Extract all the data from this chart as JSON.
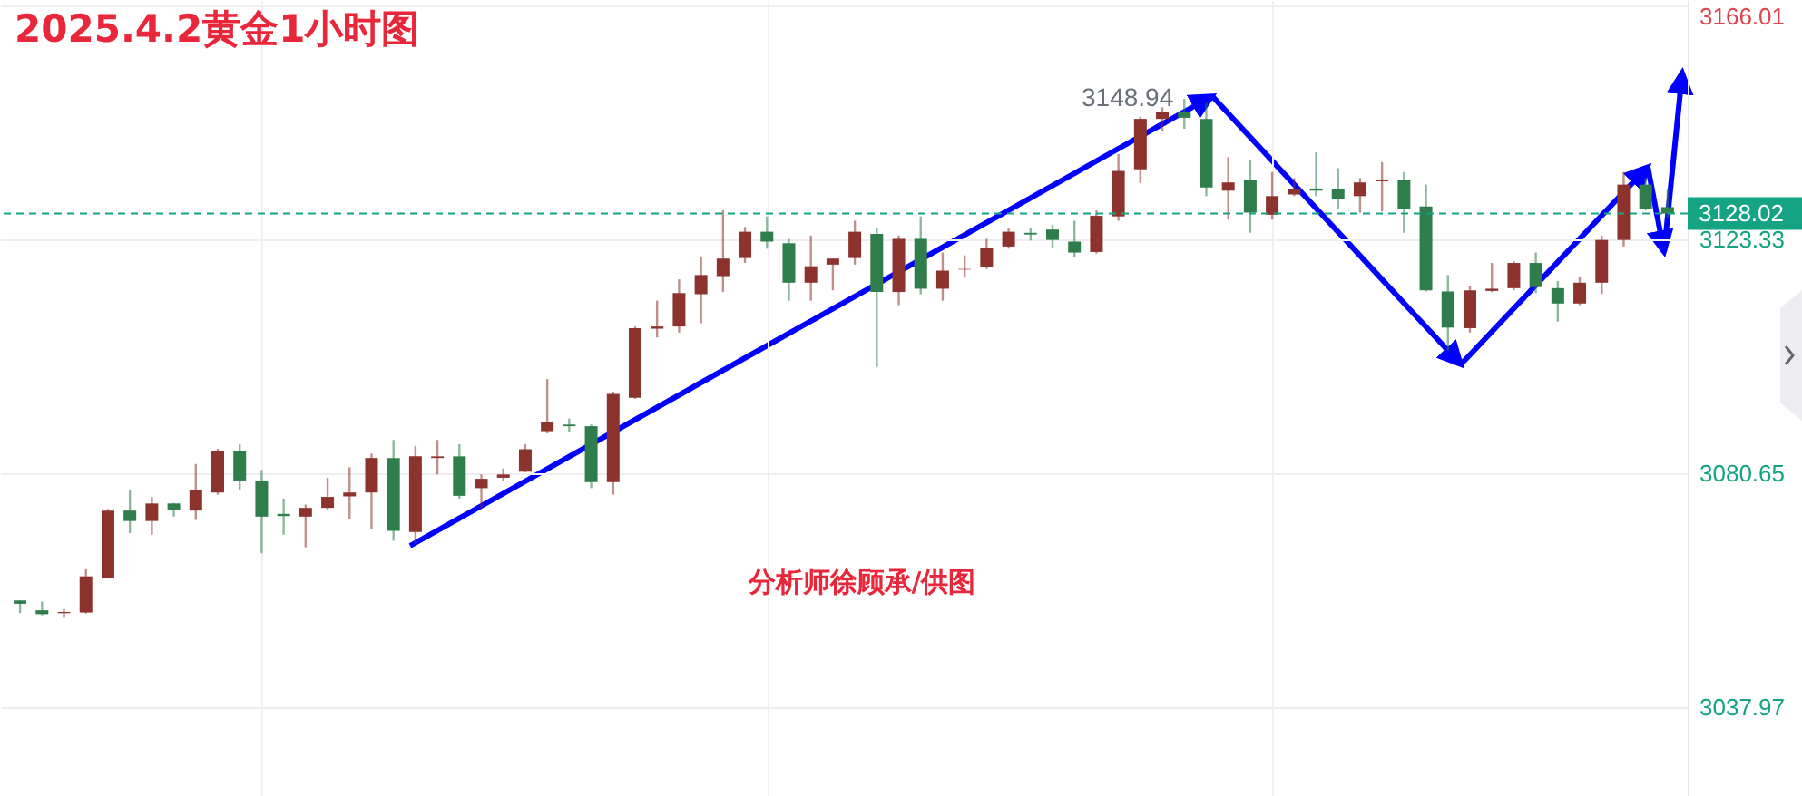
{
  "chart_data": {
    "type": "candlestick",
    "title": "2025.4.2黄金1小时图",
    "categories": [
      null,
      null,
      null,
      null,
      null,
      null,
      null,
      null,
      null,
      null,
      null,
      null,
      null,
      null,
      null,
      null,
      null,
      null,
      null,
      null,
      null,
      null,
      null,
      null,
      null,
      null,
      null,
      null,
      null,
      null,
      null,
      null,
      null,
      null,
      null,
      null,
      null,
      null,
      null,
      null,
      null,
      null,
      null,
      null,
      null,
      null,
      null,
      null,
      null,
      null,
      null,
      null,
      null,
      null,
      null,
      null,
      null,
      null,
      null,
      null,
      null,
      null,
      null,
      null,
      null,
      null,
      null,
      null,
      null,
      null,
      null,
      null,
      null,
      null,
      null,
      null
    ],
    "ohlc": [
      [
        3057.4,
        3057.4,
        3055.1,
        3056.8
      ],
      [
        3055.6,
        3057.2,
        3054.7,
        3054.9
      ],
      [
        3055.1,
        3055.8,
        3054.2,
        3055.3
      ],
      [
        3055.2,
        3063.1,
        3055.0,
        3061.8
      ],
      [
        3061.6,
        3074.1,
        3061.4,
        3073.8
      ],
      [
        3073.8,
        3077.6,
        3069.7,
        3071.9
      ],
      [
        3071.9,
        3076.3,
        3069.4,
        3075.1
      ],
      [
        3075.1,
        3075.2,
        3072.7,
        3074.0
      ],
      [
        3073.8,
        3082.3,
        3072.1,
        3077.6
      ],
      [
        3077.1,
        3085.1,
        3076.7,
        3084.6
      ],
      [
        3084.6,
        3085.9,
        3077.6,
        3079.3
      ],
      [
        3079.3,
        3081.2,
        3066.0,
        3072.7
      ],
      [
        3073.2,
        3076.0,
        3069.4,
        3072.8
      ],
      [
        3072.7,
        3074.9,
        3067.1,
        3074.3
      ],
      [
        3074.3,
        3079.8,
        3074.0,
        3076.3
      ],
      [
        3076.4,
        3081.7,
        3072.3,
        3077.1
      ],
      [
        3077.1,
        3084.2,
        3070.4,
        3083.4
      ],
      [
        3083.4,
        3086.7,
        3068.3,
        3070.1
      ],
      [
        3069.9,
        3085.6,
        3067.7,
        3083.7
      ],
      [
        3083.4,
        3086.7,
        3080.4,
        3083.7
      ],
      [
        3083.7,
        3085.9,
        3076.0,
        3076.5
      ],
      [
        3077.9,
        3080.4,
        3074.3,
        3079.6
      ],
      [
        3079.8,
        3081.5,
        3079.3,
        3080.4
      ],
      [
        3080.9,
        3085.9,
        3080.8,
        3085.0
      ],
      [
        3088.3,
        3097.8,
        3087.9,
        3090.0
      ],
      [
        3089.5,
        3090.6,
        3088.1,
        3089.2
      ],
      [
        3089.2,
        3089.5,
        3077.9,
        3079.0
      ],
      [
        3079.0,
        3095.5,
        3076.7,
        3095.1
      ],
      [
        3094.4,
        3107.4,
        3094.2,
        3107.1
      ],
      [
        3107.0,
        3112.1,
        3105.4,
        3107.4
      ],
      [
        3107.4,
        3116.0,
        3106.3,
        3113.5
      ],
      [
        3113.3,
        3120.1,
        3108.0,
        3116.8
      ],
      [
        3116.6,
        3128.6,
        3113.7,
        3119.8
      ],
      [
        3119.9,
        3125.6,
        3119.0,
        3124.7
      ],
      [
        3124.7,
        3127.5,
        3121.6,
        3122.9
      ],
      [
        3122.6,
        3123.4,
        3112.1,
        3115.4
      ],
      [
        3115.4,
        3124.0,
        3112.1,
        3118.4
      ],
      [
        3118.7,
        3119.8,
        3114.0,
        3119.8
      ],
      [
        3119.9,
        3126.7,
        3118.7,
        3124.7
      ],
      [
        3124.3,
        3125.3,
        3100.0,
        3113.7
      ],
      [
        3113.7,
        3124.0,
        3111.3,
        3123.4
      ],
      [
        3123.4,
        3127.5,
        3113.3,
        3114.3
      ],
      [
        3114.3,
        3120.9,
        3112.1,
        3117.6
      ],
      [
        3117.8,
        3120.4,
        3116.3,
        3117.9
      ],
      [
        3118.2,
        3123.4,
        3117.9,
        3121.8
      ],
      [
        3122.0,
        3125.3,
        3121.6,
        3124.7
      ],
      [
        3124.5,
        3125.3,
        3123.1,
        3124.2
      ],
      [
        3125.1,
        3126.0,
        3121.8,
        3123.2
      ],
      [
        3122.9,
        3126.7,
        3120.1,
        3120.9
      ],
      [
        3121.0,
        3128.6,
        3120.7,
        3127.6
      ],
      [
        3127.5,
        3138.9,
        3126.7,
        3135.8
      ],
      [
        3136.1,
        3145.7,
        3133.6,
        3145.3
      ],
      [
        3145.3,
        3147.4,
        3143.1,
        3146.6
      ],
      [
        3146.6,
        3148.94,
        3143.5,
        3145.5
      ],
      [
        3145.3,
        3148.2,
        3131.2,
        3132.8
      ],
      [
        3132.2,
        3138.3,
        3126.9,
        3133.7
      ],
      [
        3134.1,
        3137.8,
        3124.5,
        3128.2
      ],
      [
        3127.8,
        3135.6,
        3126.9,
        3131.2
      ],
      [
        3131.5,
        3134.5,
        3131.2,
        3132.5
      ],
      [
        3132.6,
        3139.2,
        3131.2,
        3132.2
      ],
      [
        3132.5,
        3136.3,
        3128.9,
        3130.6
      ],
      [
        3131.2,
        3134.5,
        3128.2,
        3133.7
      ],
      [
        3133.9,
        3137.4,
        3128.4,
        3134.2
      ],
      [
        3134.1,
        3135.6,
        3124.5,
        3128.9
      ],
      [
        3129.3,
        3133.3,
        3113.8,
        3114.0
      ],
      [
        3113.8,
        3116.8,
        3103.0,
        3107.2
      ],
      [
        3107.1,
        3114.8,
        3106.3,
        3114.0
      ],
      [
        3113.9,
        3119.0,
        3113.7,
        3114.3
      ],
      [
        3114.4,
        3119.3,
        3114.0,
        3119.0
      ],
      [
        3119.0,
        3120.9,
        3113.5,
        3114.6
      ],
      [
        3114.4,
        3115.7,
        3108.3,
        3111.6
      ],
      [
        3111.6,
        3116.5,
        3111.3,
        3115.4
      ],
      [
        3115.4,
        3124.0,
        3113.3,
        3123.2
      ],
      [
        3123.2,
        3135.6,
        3122.0,
        3133.3
      ],
      [
        3133.3,
        3134.5,
        3128.6,
        3128.9
      ],
      [
        3129.2,
        3132.6,
        3127.3,
        3128.02
      ]
    ],
    "ylim": [
      3021.7,
      3167.0
    ],
    "yticks": [
      3037.97,
      3080.65,
      3123.33,
      3166.01
    ],
    "ref_lines": [
      {
        "axis": "y",
        "value": 3128.02,
        "label": "3128.02",
        "color": "#14a383",
        "line_style": "dashed"
      }
    ],
    "annotations": [
      "3148.94",
      "分析师徐顾承/供图"
    ],
    "grid": true,
    "tick_labels": "y"
  }
}
